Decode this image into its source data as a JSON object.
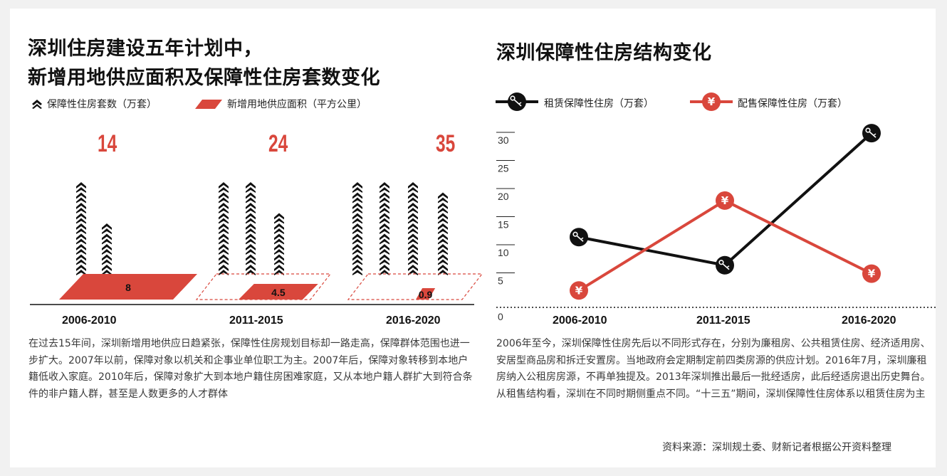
{
  "left": {
    "title_line1": "深圳住房建设五年计划中，",
    "title_line2": "新增用地供应面积及保障性住房套数变化",
    "legend_housing": "保障性住房套数（万套）",
    "legend_land": "新增用地供应面积（平方公里）",
    "description": "在过去15年间，深圳新增用地供应日趋紧张，保障性住房规划目标却一路走高，保障群体范围也进一步扩大。2007年以前，保障对象以机关和企事业单位职工为主。2007年后，保障对象转移到本地户籍低收入家庭。2010年后，保障对象扩大到本地户籍住房困难家庭，又从本地户籍人群扩大到符合条件的非户籍人群，甚至是人数更多的人才群体"
  },
  "right": {
    "title": "深圳保障性住房结构变化",
    "legend_rent": "租赁保障性住房（万套）",
    "legend_sale": "配售保障性住房（万套）",
    "description": "2006年至今，深圳保障性住房先后以不同形式存在，分别为廉租房、公共租赁住房、经济适用房、安居型商品房和拆迁安置房。当地政府会定期制定前四类房源的供应计划。2016年7月，深圳廉租房纳入公租房房源，不再单独提及。2013年深圳推出最后一批经适房，此后经适房退出历史舞台。从租售结构看，深圳在不同时期侧重点不同。“十三五”期间，深圳保障性住房体系以租赁住房为主",
    "source": "资料来源：深圳规土委、财新记者根据公开资料整理"
  },
  "icons": {
    "house": "house-icon",
    "rent": "key-icon",
    "sale": "yuan-icon"
  },
  "colors": {
    "red": "#d9473c",
    "black": "#111111",
    "grid": "#222222"
  },
  "chart_data": [
    {
      "type": "pictograph",
      "title": "深圳住房建设五年计划中，新增用地供应面积及保障性住房套数变化",
      "categories": [
        "2006-2010",
        "2011-2015",
        "2016-2020"
      ],
      "series": [
        {
          "name": "保障性住房套数（万套）",
          "values": [
            14,
            24,
            35
          ],
          "labels": [
            "14",
            "24",
            "35"
          ]
        },
        {
          "name": "新增用地供应面积（平方公里）",
          "values": [
            8,
            4.5,
            0.9
          ],
          "labels": [
            "8",
            "4.5",
            "0.9"
          ]
        }
      ],
      "unit_per_icon": 1,
      "icon_columns": [
        [
          9,
          5
        ],
        [
          9,
          9,
          6
        ],
        [
          9,
          9,
          9,
          8
        ]
      ]
    },
    {
      "type": "line",
      "title": "深圳保障性住房结构变化",
      "categories": [
        "2006-2010",
        "2011-2015",
        "2016-2020"
      ],
      "series": [
        {
          "name": "租赁保障性住房（万套）",
          "values": [
            12.5,
            7.5,
            31
          ]
        },
        {
          "name": "配售保障性住房（万套）",
          "values": [
            3,
            19,
            6
          ]
        }
      ],
      "yticks": [
        "5",
        "10",
        "15",
        "20",
        "25",
        "30"
      ],
      "origin_label": "0",
      "ylim": [
        0,
        32
      ]
    }
  ]
}
